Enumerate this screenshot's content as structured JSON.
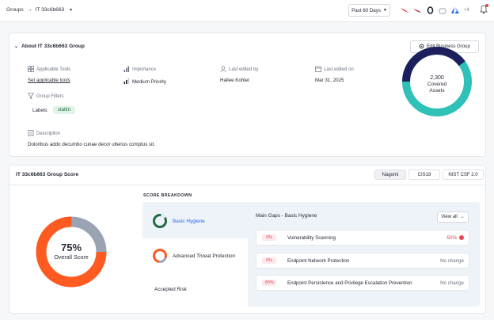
{
  "header": {
    "breadcrumb_root": "Groups",
    "breadcrumb_current": "IT 33c6b663",
    "date_range": "Past 60 Days",
    "more_tools": "+4"
  },
  "about": {
    "title": "About IT 33c6b663 Group",
    "edit_button": "Edit Business Group",
    "applicable_tools_label": "Applicable Tools",
    "applicable_tools_link": "Set applicable tools",
    "importance_label": "Importance",
    "importance_value": "Medium Priority",
    "last_edited_by_label": "Last edited by",
    "last_edited_by_value": "Hailee Kohler",
    "last_edited_on_label": "Last edited on",
    "last_edited_on_value": "Mar 31, 2025",
    "group_filters_label": "Group Filters",
    "labels_label": "Labels:",
    "label_chip": "statim",
    "description_label": "Description",
    "description_value": "Doloribus addo decumbo cunae decor ulterius comptus sit.",
    "covered_assets_count": "2,300",
    "covered_assets_line1": "Covered",
    "covered_assets_line2": "Assets"
  },
  "group_score": {
    "title": "IT 33c6b663 Group Score",
    "tabs": [
      {
        "label": "Nagomi",
        "active": true
      },
      {
        "label": "CIS18",
        "active": false
      },
      {
        "label": "NIST CSF 2.0",
        "active": false
      }
    ],
    "overall_percent": "75%",
    "overall_label": "Overall Score",
    "overall_value": 75,
    "breakdown_title": "SCORE BREAKDOWN",
    "breakdown_items": [
      {
        "label": "Basic Hygiene",
        "active": true
      },
      {
        "label": "Advanced Threat Protection",
        "active": false
      },
      {
        "label": "Accepted Risk",
        "active": false
      }
    ],
    "gaps_title": "Main Gaps - Basic Hygiene",
    "view_all": "View all",
    "gaps": [
      {
        "pct": "0%",
        "name": "Vulnerability Scanning",
        "change": "-50%"
      },
      {
        "pct": "0%",
        "name": "Endpoint Network Protection",
        "change": "No change"
      },
      {
        "pct": "65%",
        "name": "Endpoint Persistence and Privilege Escalation Prevention",
        "change": "No change"
      }
    ]
  },
  "colors": {
    "teal": "#2fc0b8",
    "navy": "#1d1f5c",
    "orange": "#ff5a1f",
    "grey_ring": "#9aa3b2",
    "green": "#1f6b3f",
    "link_blue": "#2563eb"
  }
}
